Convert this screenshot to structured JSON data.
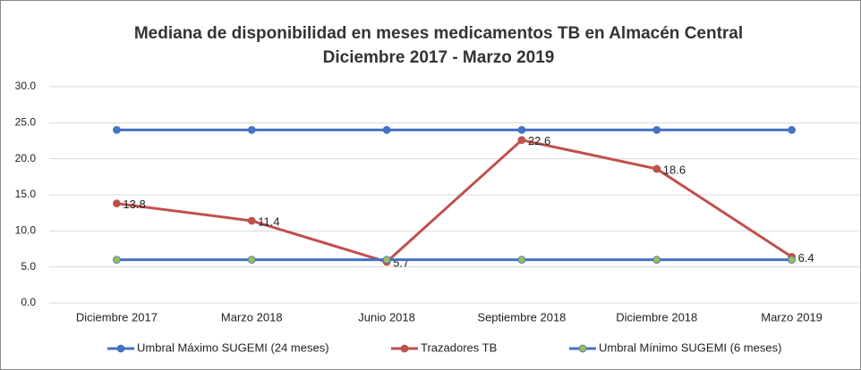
{
  "chart_data": {
    "type": "line",
    "title": [
      "Mediana de disponibilidad en meses medicamentos TB en Almacén Central",
      "Diciembre 2017 - Marzo 2019"
    ],
    "categories": [
      "Diciembre 2017",
      "Marzo 2018",
      "Junio 2018",
      "Septiembre 2018",
      "Diciembre 2018",
      "Marzo 2019"
    ],
    "series": [
      {
        "name": "Umbral Máximo SUGEMI (24 meses)",
        "color": "#4472c4",
        "marker_color": "#4472c4",
        "values": [
          24,
          24,
          24,
          24,
          24,
          24
        ]
      },
      {
        "name": "Trazadores TB",
        "color": "#c0504d",
        "marker_color": "#c0504d",
        "values": [
          13.8,
          11.4,
          5.7,
          22.6,
          18.6,
          6.4
        ],
        "data_labels": true
      },
      {
        "name": "Umbral Mínimo SUGEMI (6 meses)",
        "color": "#4472c4",
        "marker_color": "#9bbb59",
        "values": [
          6,
          6,
          6,
          6,
          6,
          6
        ]
      }
    ],
    "ylim": [
      0,
      30
    ],
    "yticks": [
      {
        "value": 0,
        "label": "0.0"
      },
      {
        "value": 5,
        "label": "5.0"
      },
      {
        "value": 10,
        "label": "10.0"
      },
      {
        "value": 15,
        "label": "15.0"
      },
      {
        "value": 20,
        "label": "20.0"
      },
      {
        "value": 25,
        "label": "25.0"
      },
      {
        "value": 30,
        "label": "30.0"
      }
    ],
    "grid": true,
    "legend": "bottom"
  }
}
